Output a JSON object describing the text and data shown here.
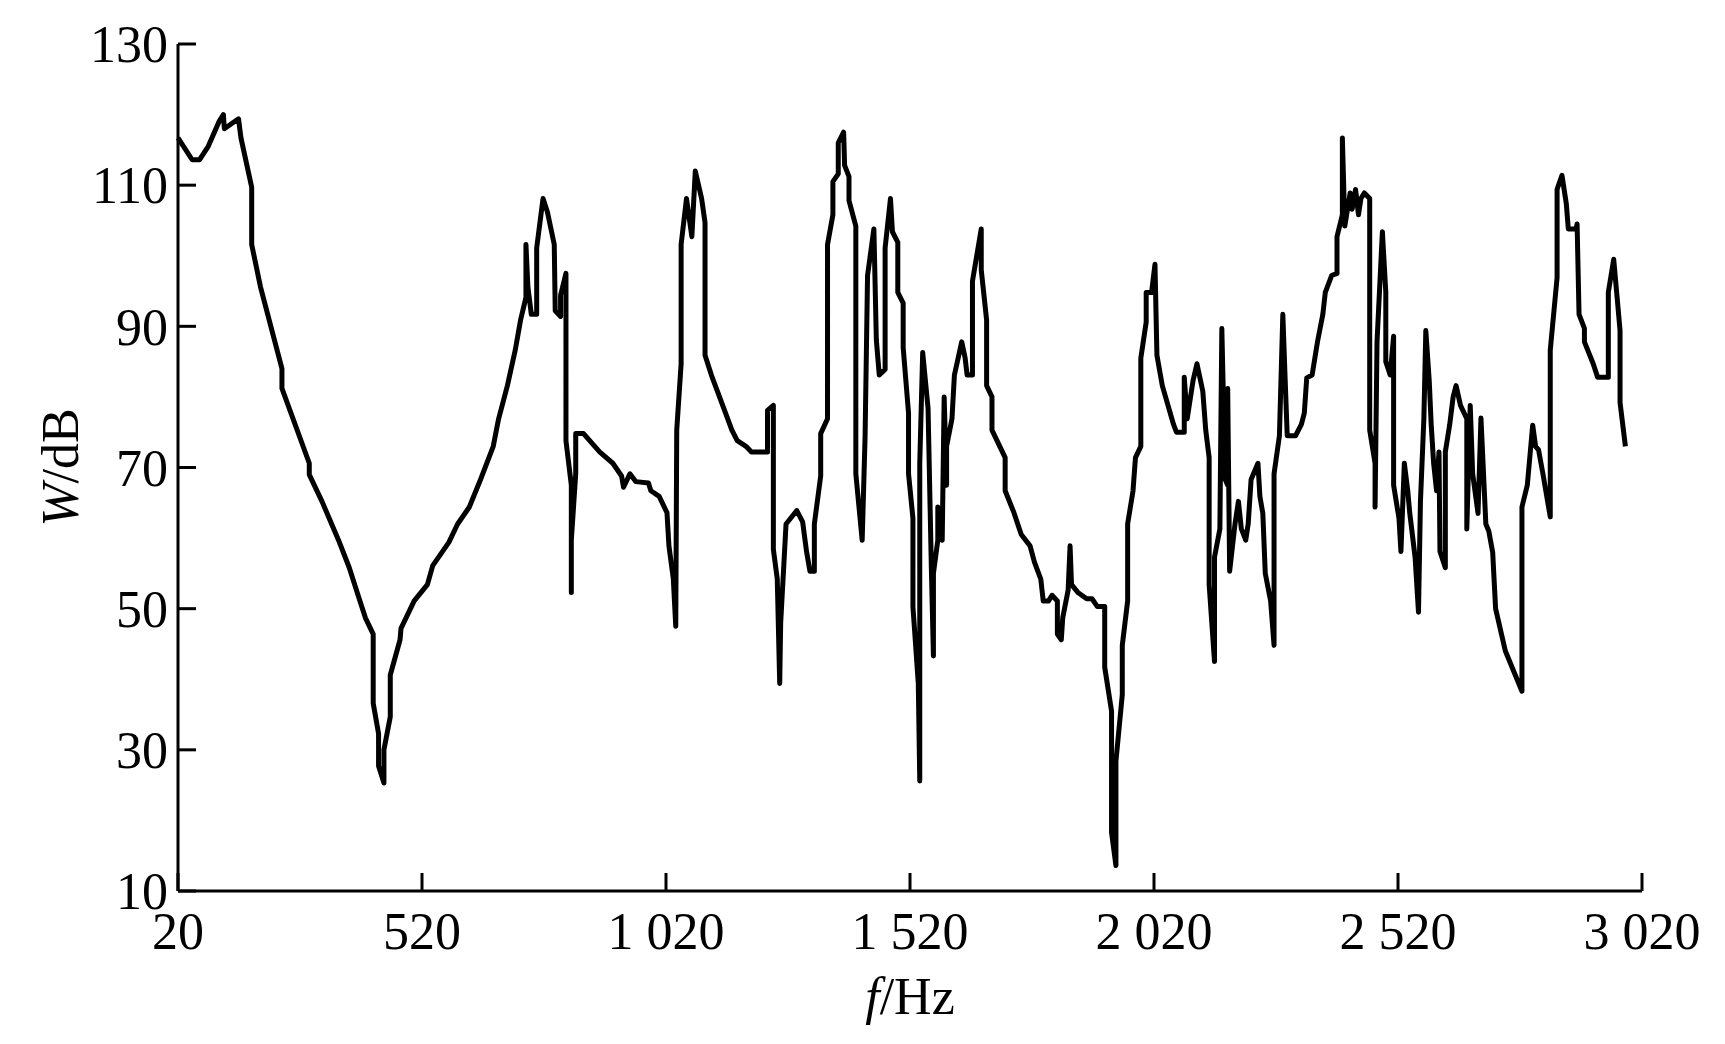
{
  "chart_data": {
    "type": "line",
    "xlabel": "f/Hz",
    "ylabel": "W/dB",
    "xlim": [
      20,
      3020
    ],
    "ylim": [
      10,
      130
    ],
    "xticks": [
      20,
      520,
      {
        "value": 1020,
        "label": "1 020"
      },
      {
        "value": 1520,
        "label": "1 520"
      },
      {
        "value": 2020,
        "label": "2 020"
      },
      {
        "value": 2520,
        "label": "2 520"
      },
      {
        "value": 3020,
        "label": "3 020"
      }
    ],
    "yticks": [
      10,
      30,
      50,
      70,
      90,
      110,
      130
    ],
    "grid": false,
    "marker": "none",
    "line_style": "solid",
    "series": [
      {
        "color": "#000000",
        "x": [
          20,
          49,
          64,
          82,
          104,
          113,
          115,
          144,
          149,
          171,
          171,
          189,
          233,
          233,
          289,
          289,
          315,
          349,
          371,
          389,
          404,
          420,
          420,
          431,
          431,
          442,
          442,
          455,
          455,
          475,
          477,
          504,
          531,
          542,
          575,
          593,
          617,
          640,
          666,
          677,
          695,
          711,
          722,
          733,
          733,
          737,
          744,
          755,
          755,
          768,
          777,
          791,
          793,
          804,
          804,
          815,
          815,
          826,
          826,
          826,
          835,
          835,
          851,
          884,
          911,
          929,
          933,
          946,
          958,
          984,
          989,
          1006,
          1022,
          1026,
          1035,
          1040,
          1042,
          1051,
          1051,
          1062,
          1073,
          1080,
          1093,
          1100,
          1100,
          1113,
          1140,
          1155,
          1166,
          1184,
          1195,
          1228,
          1228,
          1240,
          1240,
          1248,
          1253,
          1255,
          1266,
          1288,
          1300,
          1308,
          1315,
          1324,
          1324,
          1337,
          1337,
          1351,
          1351,
          1362,
          1362,
          1373,
          1373,
          1384,
          1386,
          1395,
          1395,
          1409,
          1409,
          1422,
          1428,
          1433,
          1446,
          1451,
          1457,
          1469,
          1469,
          1480,
          1484,
          1495,
          1495,
          1506,
          1506,
          1517,
          1517,
          1526,
          1526,
          1537,
          1540,
          1540,
          1546,
          1557,
          1564,
          1568,
          1568,
          1577,
          1577,
          1586,
          1590,
          1595,
          1595,
          1606,
          1611,
          1626,
          1633,
          1637,
          1648,
          1648,
          1666,
          1666,
          1677,
          1677,
          1688,
          1688,
          1715,
          1715,
          1733,
          1748,
          1766,
          1775,
          1788,
          1793,
          1804,
          1811,
          1822,
          1822,
          1830,
          1833,
          1844,
          1848,
          1851,
          1864,
          1882,
          1893,
          1904,
          1919,
          1919,
          1933,
          1933,
          1942,
          1942,
          1955,
          1955,
          1966,
          1966,
          1977,
          1982,
          1993,
          1993,
          2004,
          2004,
          2015,
          2022,
          2026,
          2037,
          2060,
          2066,
          2082,
          2082,
          2088,
          2100,
          2108,
          2120,
          2126,
          2133,
          2133,
          2144,
          2144,
          2155,
          2159,
          2166,
          2171,
          2171,
          2175,
          2186,
          2193,
          2199,
          2208,
          2213,
          2219,
          2233,
          2237,
          2243,
          2248,
          2259,
          2266,
          2266,
          2277,
          2284,
          2288,
          2293,
          2310,
          2322,
          2328,
          2333,
          2344,
          2355,
          2366,
          2371,
          2384,
          2395,
          2395,
          2406,
          2406,
          2411,
          2422,
          2426,
          2433,
          2439,
          2444,
          2451,
          2462,
          2462,
          2473,
          2473,
          2477,
          2488,
          2495,
          2495,
          2504,
          2511,
          2511,
          2522,
          2526,
          2533,
          2540,
          2544,
          2555,
          2562,
          2566,
          2573,
          2577,
          2584,
          2588,
          2593,
          2599,
          2604,
          2606,
          2617,
          2617,
          2626,
          2633,
          2639,
          2648,
          2659,
          2661,
          2661,
          2668,
          2673,
          2684,
          2690,
          2700,
          2706,
          2714,
          2720,
          2740,
          2774,
          2774,
          2785,
          2796,
          2802,
          2808,
          2817,
          2832,
          2832,
          2846,
          2846,
          2856,
          2865,
          2869,
          2885,
          2887,
          2891,
          2902,
          2902,
          2920,
          2929,
          2951,
          2951,
          2962,
          2969,
          2975,
          2975,
          2986
        ],
        "values": [
          116.7,
          113.6,
          113.6,
          115.5,
          119,
          120,
          118,
          119.4,
          116.7,
          109.7,
          101.6,
          95.6,
          84,
          81.2,
          70.6,
          69,
          65.2,
          59.7,
          55.8,
          51.9,
          48.7,
          46.4,
          36.6,
          32.3,
          27.7,
          25.3,
          30,
          34.7,
          40.6,
          45.6,
          47.2,
          51.1,
          53.4,
          56.1,
          59.4,
          62,
          64.4,
          68.3,
          73,
          76.9,
          81.6,
          86.6,
          90.9,
          94.1,
          101.6,
          95.6,
          91.7,
          91.7,
          101.1,
          108.1,
          106.2,
          101.6,
          92.2,
          91.4,
          94.4,
          97.5,
          73.8,
          67.5,
          52.3,
          59.7,
          69.1,
          74.8,
          74.8,
          72.2,
          70.6,
          68.8,
          67.2,
          69.1,
          68,
          67.8,
          66.7,
          65.9,
          63.6,
          58.9,
          54.2,
          47.5,
          75.3,
          84.7,
          101.6,
          108.1,
          102.7,
          112,
          108.1,
          104.7,
          85.9,
          83.1,
          78.1,
          75.3,
          73.8,
          73,
          72.2,
          72.2,
          78.1,
          78.8,
          58.4,
          54.2,
          39.4,
          48,
          62,
          63.9,
          62.3,
          58.1,
          55.3,
          55.3,
          62,
          68.8,
          74.8,
          76.9,
          101.6,
          105.8,
          110.5,
          111.6,
          116,
          117.5,
          112.8,
          111.2,
          107.8,
          104.2,
          69.1,
          59.7,
          74.5,
          97.2,
          103.8,
          88.1,
          83.1,
          83.9,
          101.1,
          108.1,
          103.4,
          101.9,
          94.8,
          93.3,
          87,
          77.7,
          69.1,
          62.8,
          50.3,
          39.4,
          25.6,
          70.6,
          86.3,
          78.4,
          55,
          43.3,
          55,
          59.7,
          64.4,
          59.7,
          80,
          67.5,
          73,
          76.9,
          83.1,
          87.8,
          85.5,
          83.1,
          83.1,
          96.4,
          103.8,
          98,
          90.9,
          81.6,
          80,
          75.3,
          71.4,
          66.7,
          63.6,
          60.5,
          58.9,
          56.6,
          54.2,
          51.1,
          51.1,
          51.9,
          51.1,
          46.4,
          45.6,
          48.7,
          52.6,
          58.9,
          53.4,
          52.3,
          51.4,
          51.4,
          50.3,
          50.3,
          41.7,
          35.5,
          18.3,
          13.6,
          28.4,
          37.8,
          44.8,
          51.1,
          62,
          66.7,
          71.4,
          73,
          85.5,
          90.6,
          94.8,
          94.8,
          98.8,
          85.9,
          81.6,
          76.1,
          75,
          75,
          82.8,
          76.9,
          82.3,
          84.7,
          80.8,
          75.3,
          71.4,
          53.4,
          42.5,
          57.3,
          61.3,
          89.7,
          68.3,
          67.5,
          81.2,
          55.3,
          62,
          65.2,
          61.3,
          59.7,
          62,
          68.3,
          70.6,
          65.9,
          63.5,
          55,
          51.1,
          44.8,
          69.1,
          74.5,
          91.7,
          83.9,
          74.5,
          74.5,
          76.1,
          77.7,
          82.7,
          83.1,
          87.8,
          91.7,
          94.8,
          97.2,
          97.5,
          102.7,
          105.8,
          116.7,
          104.2,
          108.9,
          106.6,
          109.4,
          105.8,
          108.1,
          108.9,
          108.1,
          75.3,
          70.6,
          64.4,
          87.8,
          103.4,
          94.8,
          85,
          83.1,
          88.6,
          67.5,
          62.8,
          58.1,
          70.6,
          66.7,
          63.6,
          57.3,
          49.5,
          65.2,
          76.9,
          89.4,
          82.3,
          76.1,
          70.6,
          66.7,
          72.2,
          58.1,
          55.8,
          72.2,
          76.1,
          80,
          81.6,
          78.8,
          77.2,
          76.9,
          61.3,
          78.8,
          69.1,
          63.5,
          77,
          62,
          61,
          58,
          50,
          44,
          38.3,
          64.4,
          67.5,
          76,
          73,
          72.5,
          69.1,
          63,
          86.6,
          96.9,
          109.4,
          111.4,
          107.3,
          103.8,
          103.8,
          104.5,
          91.7,
          89.7,
          87.8,
          84.7,
          82.8,
          82.8,
          94.8,
          99.5,
          94.1,
          89.4,
          79.2,
          73
        ]
      }
    ]
  }
}
